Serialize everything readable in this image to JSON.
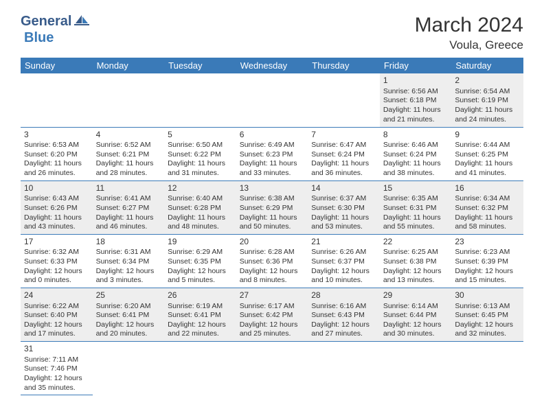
{
  "brand": {
    "general": "General",
    "blue": "Blue"
  },
  "title": "March 2024",
  "location": "Voula, Greece",
  "colors": {
    "header_bg": "#3a7ab8",
    "header_text": "#ffffff",
    "row_alt_bg": "#eeeeee",
    "row_bg": "#ffffff",
    "border": "#3a7ab8",
    "brand_dark": "#385b8a",
    "brand_light": "#3a7ab8"
  },
  "days_of_week": [
    "Sunday",
    "Monday",
    "Tuesday",
    "Wednesday",
    "Thursday",
    "Friday",
    "Saturday"
  ],
  "weeks": [
    [
      null,
      null,
      null,
      null,
      null,
      {
        "day": "1",
        "sunrise": "Sunrise: 6:56 AM",
        "sunset": "Sunset: 6:18 PM",
        "daylight": "Daylight: 11 hours and 21 minutes."
      },
      {
        "day": "2",
        "sunrise": "Sunrise: 6:54 AM",
        "sunset": "Sunset: 6:19 PM",
        "daylight": "Daylight: 11 hours and 24 minutes."
      }
    ],
    [
      {
        "day": "3",
        "sunrise": "Sunrise: 6:53 AM",
        "sunset": "Sunset: 6:20 PM",
        "daylight": "Daylight: 11 hours and 26 minutes."
      },
      {
        "day": "4",
        "sunrise": "Sunrise: 6:52 AM",
        "sunset": "Sunset: 6:21 PM",
        "daylight": "Daylight: 11 hours and 28 minutes."
      },
      {
        "day": "5",
        "sunrise": "Sunrise: 6:50 AM",
        "sunset": "Sunset: 6:22 PM",
        "daylight": "Daylight: 11 hours and 31 minutes."
      },
      {
        "day": "6",
        "sunrise": "Sunrise: 6:49 AM",
        "sunset": "Sunset: 6:23 PM",
        "daylight": "Daylight: 11 hours and 33 minutes."
      },
      {
        "day": "7",
        "sunrise": "Sunrise: 6:47 AM",
        "sunset": "Sunset: 6:24 PM",
        "daylight": "Daylight: 11 hours and 36 minutes."
      },
      {
        "day": "8",
        "sunrise": "Sunrise: 6:46 AM",
        "sunset": "Sunset: 6:24 PM",
        "daylight": "Daylight: 11 hours and 38 minutes."
      },
      {
        "day": "9",
        "sunrise": "Sunrise: 6:44 AM",
        "sunset": "Sunset: 6:25 PM",
        "daylight": "Daylight: 11 hours and 41 minutes."
      }
    ],
    [
      {
        "day": "10",
        "sunrise": "Sunrise: 6:43 AM",
        "sunset": "Sunset: 6:26 PM",
        "daylight": "Daylight: 11 hours and 43 minutes."
      },
      {
        "day": "11",
        "sunrise": "Sunrise: 6:41 AM",
        "sunset": "Sunset: 6:27 PM",
        "daylight": "Daylight: 11 hours and 46 minutes."
      },
      {
        "day": "12",
        "sunrise": "Sunrise: 6:40 AM",
        "sunset": "Sunset: 6:28 PM",
        "daylight": "Daylight: 11 hours and 48 minutes."
      },
      {
        "day": "13",
        "sunrise": "Sunrise: 6:38 AM",
        "sunset": "Sunset: 6:29 PM",
        "daylight": "Daylight: 11 hours and 50 minutes."
      },
      {
        "day": "14",
        "sunrise": "Sunrise: 6:37 AM",
        "sunset": "Sunset: 6:30 PM",
        "daylight": "Daylight: 11 hours and 53 minutes."
      },
      {
        "day": "15",
        "sunrise": "Sunrise: 6:35 AM",
        "sunset": "Sunset: 6:31 PM",
        "daylight": "Daylight: 11 hours and 55 minutes."
      },
      {
        "day": "16",
        "sunrise": "Sunrise: 6:34 AM",
        "sunset": "Sunset: 6:32 PM",
        "daylight": "Daylight: 11 hours and 58 minutes."
      }
    ],
    [
      {
        "day": "17",
        "sunrise": "Sunrise: 6:32 AM",
        "sunset": "Sunset: 6:33 PM",
        "daylight": "Daylight: 12 hours and 0 minutes."
      },
      {
        "day": "18",
        "sunrise": "Sunrise: 6:31 AM",
        "sunset": "Sunset: 6:34 PM",
        "daylight": "Daylight: 12 hours and 3 minutes."
      },
      {
        "day": "19",
        "sunrise": "Sunrise: 6:29 AM",
        "sunset": "Sunset: 6:35 PM",
        "daylight": "Daylight: 12 hours and 5 minutes."
      },
      {
        "day": "20",
        "sunrise": "Sunrise: 6:28 AM",
        "sunset": "Sunset: 6:36 PM",
        "daylight": "Daylight: 12 hours and 8 minutes."
      },
      {
        "day": "21",
        "sunrise": "Sunrise: 6:26 AM",
        "sunset": "Sunset: 6:37 PM",
        "daylight": "Daylight: 12 hours and 10 minutes."
      },
      {
        "day": "22",
        "sunrise": "Sunrise: 6:25 AM",
        "sunset": "Sunset: 6:38 PM",
        "daylight": "Daylight: 12 hours and 13 minutes."
      },
      {
        "day": "23",
        "sunrise": "Sunrise: 6:23 AM",
        "sunset": "Sunset: 6:39 PM",
        "daylight": "Daylight: 12 hours and 15 minutes."
      }
    ],
    [
      {
        "day": "24",
        "sunrise": "Sunrise: 6:22 AM",
        "sunset": "Sunset: 6:40 PM",
        "daylight": "Daylight: 12 hours and 17 minutes."
      },
      {
        "day": "25",
        "sunrise": "Sunrise: 6:20 AM",
        "sunset": "Sunset: 6:41 PM",
        "daylight": "Daylight: 12 hours and 20 minutes."
      },
      {
        "day": "26",
        "sunrise": "Sunrise: 6:19 AM",
        "sunset": "Sunset: 6:41 PM",
        "daylight": "Daylight: 12 hours and 22 minutes."
      },
      {
        "day": "27",
        "sunrise": "Sunrise: 6:17 AM",
        "sunset": "Sunset: 6:42 PM",
        "daylight": "Daylight: 12 hours and 25 minutes."
      },
      {
        "day": "28",
        "sunrise": "Sunrise: 6:16 AM",
        "sunset": "Sunset: 6:43 PM",
        "daylight": "Daylight: 12 hours and 27 minutes."
      },
      {
        "day": "29",
        "sunrise": "Sunrise: 6:14 AM",
        "sunset": "Sunset: 6:44 PM",
        "daylight": "Daylight: 12 hours and 30 minutes."
      },
      {
        "day": "30",
        "sunrise": "Sunrise: 6:13 AM",
        "sunset": "Sunset: 6:45 PM",
        "daylight": "Daylight: 12 hours and 32 minutes."
      }
    ],
    [
      {
        "day": "31",
        "sunrise": "Sunrise: 7:11 AM",
        "sunset": "Sunset: 7:46 PM",
        "daylight": "Daylight: 12 hours and 35 minutes."
      },
      null,
      null,
      null,
      null,
      null,
      null
    ]
  ]
}
